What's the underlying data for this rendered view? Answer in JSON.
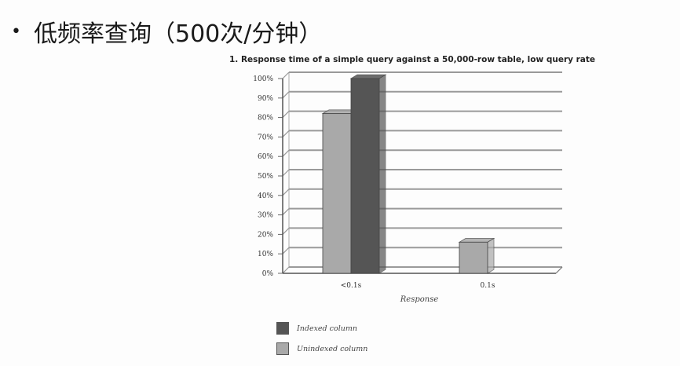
{
  "slide": {
    "bullet": "•",
    "title": "低频率查询（500次/分钟）"
  },
  "chart_data": {
    "type": "bar",
    "title": "1. Response time of a simple query against a 50,000-row table, low query rate",
    "xlabel": "Response",
    "ylabel": "",
    "categories": [
      "<0.1s",
      "0.1s"
    ],
    "series": [
      {
        "name": "Unindexed column",
        "values": [
          82,
          16
        ],
        "color": "#a9a9a9"
      },
      {
        "name": "Indexed column",
        "values": [
          100,
          0
        ],
        "color": "#555555"
      }
    ],
    "ylim": [
      0,
      100
    ],
    "yticks": [
      "0%",
      "10%",
      "20%",
      "30%",
      "40%",
      "50%",
      "60%",
      "70%",
      "80%",
      "90%",
      "100%"
    ],
    "grid": true,
    "legend_position": "bottom-left"
  }
}
